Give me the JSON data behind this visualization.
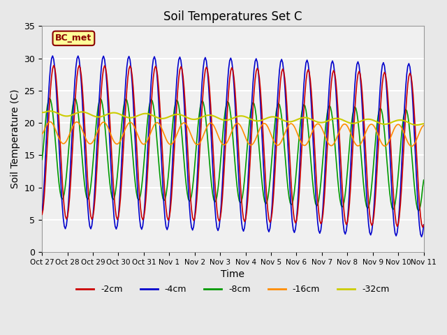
{
  "title": "Soil Temperatures Set C",
  "xlabel": "Time",
  "ylabel": "Soil Temperature (C)",
  "ylim": [
    0,
    35
  ],
  "annotation": "BC_met",
  "annotation_color": "#8B0000",
  "annotation_bg": "#FFFF99",
  "legend_labels": [
    "-2cm",
    "-4cm",
    "-8cm",
    "-16cm",
    "-32cm"
  ],
  "legend_colors": [
    "#CC0000",
    "#0000CC",
    "#009900",
    "#FF8C00",
    "#CCCC00"
  ],
  "tick_labels": [
    "Oct 27",
    "Oct 28",
    "Oct 29",
    "Oct 30",
    "Oct 31",
    "Nov 1",
    "Nov 2",
    "Nov 3",
    "Nov 4",
    "Nov 5",
    "Nov 6",
    "Nov 7",
    "Nov 8",
    "Nov 9",
    "Nov 10",
    "Nov 11"
  ],
  "bg_color": "#E8E8E8",
  "plot_bg_color": "#F0F0F0"
}
